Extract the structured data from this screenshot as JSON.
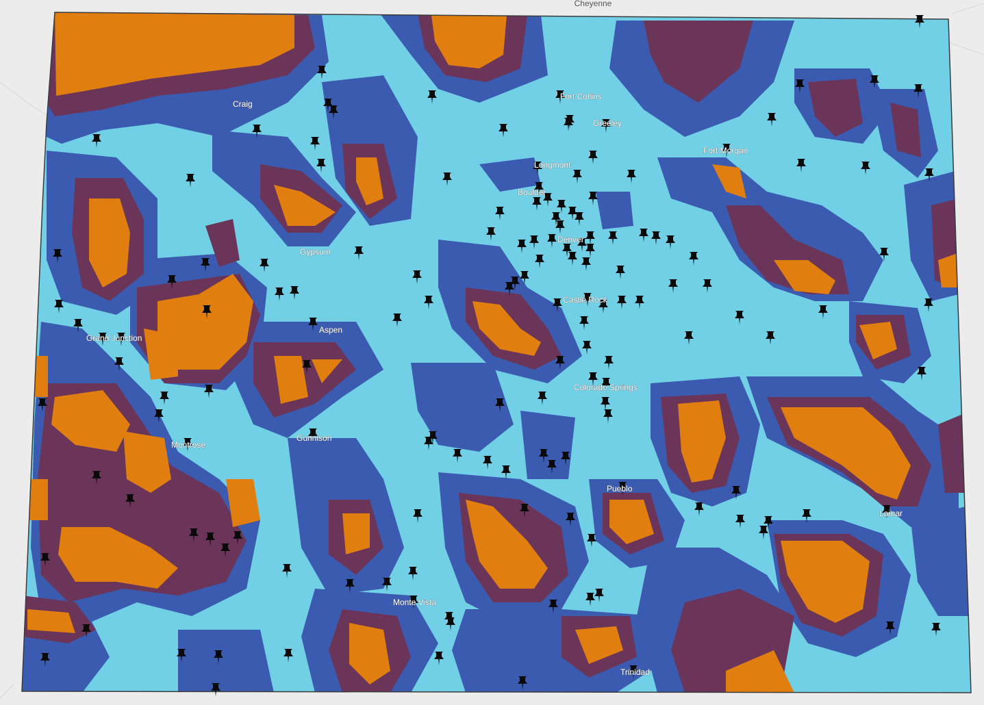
{
  "map": {
    "outside_label": "Cheyenne",
    "colors": {
      "background": "#ececec",
      "zone_light": "#72d0e6",
      "zone_blue": "#3b5bb0",
      "zone_purple": "#6a3559",
      "zone_orange": "#e07f10",
      "marker": "#0a0a0a"
    },
    "zone_legend": [
      "zone-light",
      "zone-blue",
      "zone-purple",
      "zone-orange"
    ],
    "marker_icon": "pushpin-icon",
    "cities": [
      "Fort Collins",
      "Greeley",
      "Craig",
      "Fort Morgan",
      "Longmont",
      "Boulder",
      "Denver",
      "Gypsum",
      "Aspen",
      "Castle Rock",
      "Grand Junction",
      "Colorado Springs",
      "Montrose",
      "Gunnison",
      "Pueblo",
      "Lamar",
      "Monte Vista",
      "Trinidad"
    ]
  }
}
